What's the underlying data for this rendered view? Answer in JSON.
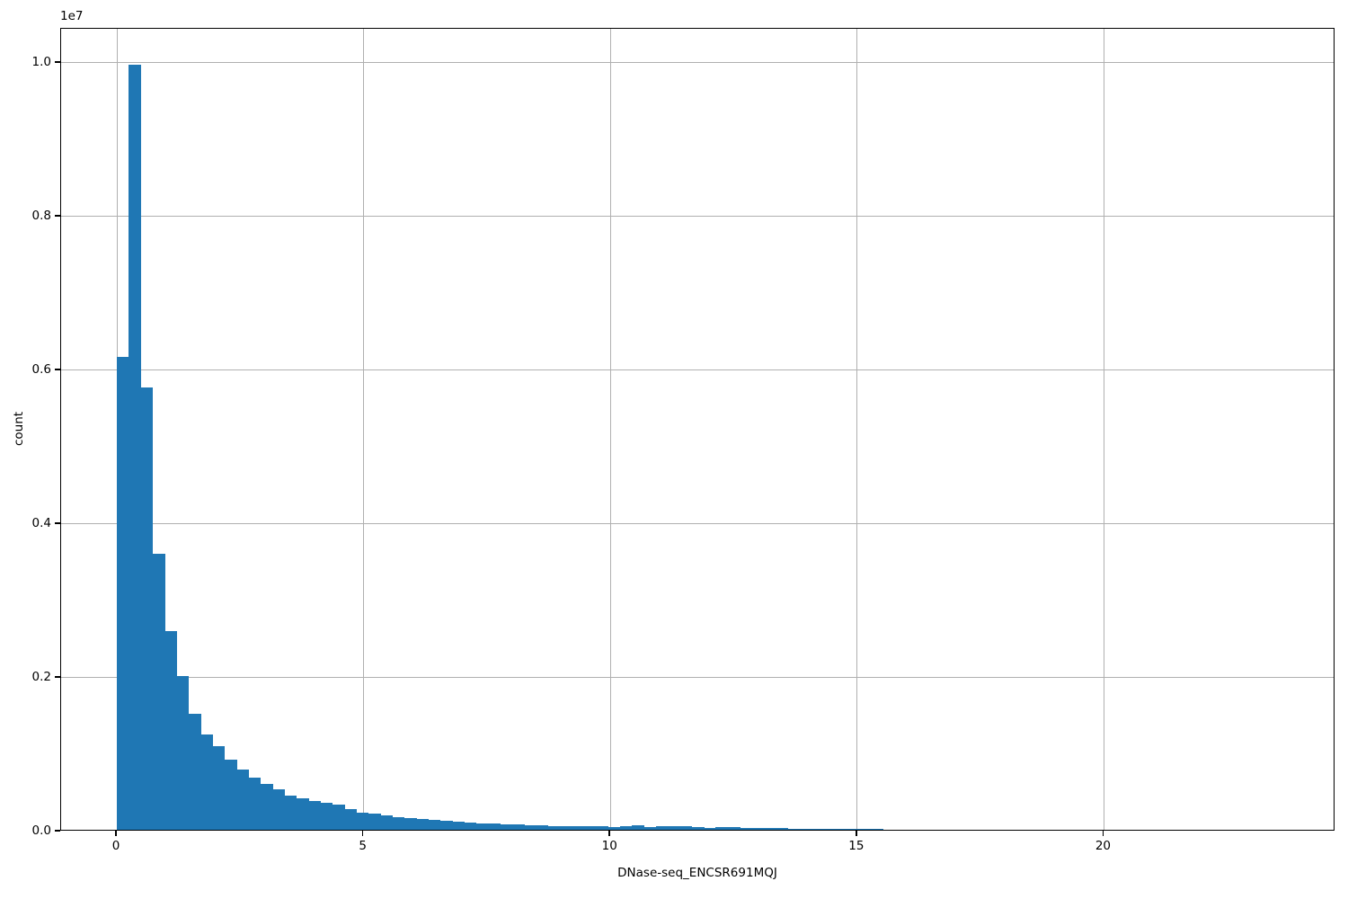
{
  "chart_data": {
    "type": "bar",
    "subtype": "histogram",
    "title": "",
    "xlabel": "DNase-seq_ENCSR691MQJ",
    "ylabel": "count",
    "y_offset_label": "1e7",
    "bar_color": "#1f77b4",
    "grid_color": "#b0b0b0",
    "spine_color": "#000000",
    "background_color": "#ffffff",
    "grid": true,
    "legend": null,
    "xlim": [
      -1.13,
      24.69
    ],
    "ylim": [
      0,
      10444000
    ],
    "x_ticks": [
      0,
      5,
      10,
      15,
      20
    ],
    "x_tick_labels": [
      "0",
      "5",
      "10",
      "15",
      "20"
    ],
    "y_ticks": [
      0,
      2000000,
      4000000,
      6000000,
      8000000,
      10000000
    ],
    "y_tick_labels": [
      "0.0",
      "0.2",
      "0.4",
      "0.6",
      "0.8",
      "1.0"
    ],
    "bin_start": 0.0,
    "bin_width": 0.2427,
    "values": [
      6150000,
      9950000,
      5750000,
      3590000,
      2590000,
      2000000,
      1510000,
      1240000,
      1090000,
      910000,
      780000,
      680000,
      600000,
      530000,
      440000,
      410000,
      380000,
      355000,
      325000,
      270000,
      225000,
      205000,
      185000,
      168000,
      152000,
      140000,
      125000,
      117000,
      105000,
      94000,
      86000,
      78000,
      72000,
      66000,
      60000,
      56000,
      52000,
      49000,
      46000,
      44000,
      42000,
      40000,
      52000,
      55000,
      38000,
      48000,
      46000,
      44000,
      30000,
      28000,
      36000,
      34000,
      24000,
      22000,
      20000,
      18000,
      16000,
      14000,
      13000,
      12000,
      11000,
      10000,
      9000,
      8000
    ]
  }
}
